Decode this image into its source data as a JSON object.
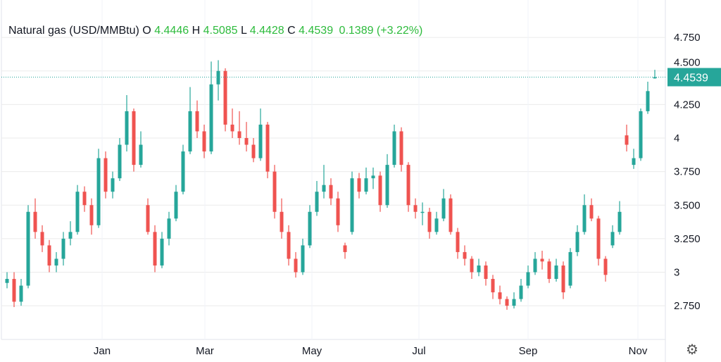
{
  "legend": {
    "symbol": "Natural gas (USD/MMBtu)",
    "o_label": "O",
    "o": "4.4446",
    "h_label": "H",
    "h": "4.5085",
    "l_label": "L",
    "l": "4.4428",
    "c_label": "C",
    "c": "4.4539",
    "change": "0.1389 (+3.22%)"
  },
  "settings_icon": "gear-icon",
  "chart_data": {
    "type": "candlestick",
    "title": "Natural gas (USD/MMBtu)",
    "ylim": [
      2.5,
      4.95
    ],
    "yticks": [
      {
        "v": 2.75,
        "label": "2.750"
      },
      {
        "v": 3,
        "label": "3"
      },
      {
        "v": 3.25,
        "label": "3.250"
      },
      {
        "v": 3.5,
        "label": "3.500"
      },
      {
        "v": 3.75,
        "label": "3.750"
      },
      {
        "v": 4,
        "label": "4"
      },
      {
        "v": 4.25,
        "label": "4.250"
      },
      {
        "v": 4.5,
        "label": "4.500"
      },
      {
        "v": 4.75,
        "label": "4.750"
      }
    ],
    "xticks": [
      {
        "label": "Jan",
        "at_candle": 13.5
      },
      {
        "label": "Mar",
        "at_candle": 28.1
      },
      {
        "label": "May",
        "at_candle": 43.3
      },
      {
        "label": "Jul",
        "at_candle": 58.5
      },
      {
        "label": "Sep",
        "at_candle": 74
      },
      {
        "label": "Nov",
        "at_candle": 89.6
      }
    ],
    "last_price": 4.4539,
    "last_price_label": "4.4539",
    "grid": true,
    "colors": {
      "up": "#26a69a",
      "down": "#ef5350",
      "grid": "#ebebeb",
      "last_price": "#26a69a"
    },
    "candles_ohlc": [
      [
        2.92,
        3.0,
        2.88,
        2.95
      ],
      [
        2.95,
        3.0,
        2.74,
        2.78
      ],
      [
        2.78,
        2.95,
        2.75,
        2.9
      ],
      [
        2.9,
        3.5,
        2.88,
        3.45
      ],
      [
        3.45,
        3.55,
        3.25,
        3.3
      ],
      [
        3.3,
        3.35,
        3.15,
        3.2
      ],
      [
        3.2,
        3.24,
        3.0,
        3.05
      ],
      [
        3.05,
        3.15,
        3.0,
        3.1
      ],
      [
        3.1,
        3.3,
        3.05,
        3.25
      ],
      [
        3.25,
        3.38,
        3.2,
        3.3
      ],
      [
        3.3,
        3.65,
        3.28,
        3.6
      ],
      [
        3.6,
        3.64,
        3.45,
        3.5
      ],
      [
        3.5,
        3.55,
        3.28,
        3.35
      ],
      [
        3.35,
        3.92,
        3.33,
        3.85
      ],
      [
        3.85,
        3.9,
        3.55,
        3.6
      ],
      [
        3.6,
        3.75,
        3.55,
        3.7
      ],
      [
        3.7,
        4.0,
        3.68,
        3.95
      ],
      [
        3.95,
        4.32,
        3.9,
        4.2
      ],
      [
        4.2,
        4.22,
        3.75,
        3.8
      ],
      [
        3.8,
        4.05,
        3.78,
        3.95
      ],
      [
        3.5,
        3.55,
        3.28,
        3.3
      ],
      [
        3.3,
        3.35,
        3.0,
        3.05
      ],
      [
        3.05,
        3.3,
        3.03,
        3.25
      ],
      [
        3.25,
        3.45,
        3.2,
        3.4
      ],
      [
        3.4,
        3.65,
        3.38,
        3.6
      ],
      [
        3.6,
        3.95,
        3.58,
        3.9
      ],
      [
        3.9,
        4.38,
        3.88,
        4.2
      ],
      [
        4.2,
        4.28,
        4.0,
        4.05
      ],
      [
        4.05,
        4.1,
        3.85,
        3.9
      ],
      [
        3.9,
        4.57,
        3.88,
        4.4
      ],
      [
        4.4,
        4.58,
        4.28,
        4.5
      ],
      [
        4.5,
        4.52,
        4.05,
        4.1
      ],
      [
        4.1,
        4.22,
        4.0,
        4.05
      ],
      [
        4.05,
        4.2,
        3.95,
        4.0
      ],
      [
        4.0,
        4.12,
        3.9,
        3.95
      ],
      [
        3.95,
        4.0,
        3.82,
        3.85
      ],
      [
        3.85,
        4.22,
        3.83,
        4.1
      ],
      [
        4.1,
        4.12,
        3.7,
        3.75
      ],
      [
        3.75,
        3.8,
        3.4,
        3.45
      ],
      [
        3.45,
        3.55,
        3.25,
        3.3
      ],
      [
        3.3,
        3.35,
        3.05,
        3.1
      ],
      [
        3.1,
        3.15,
        2.96,
        3.0
      ],
      [
        3.0,
        3.25,
        2.98,
        3.2
      ],
      [
        3.2,
        3.5,
        3.18,
        3.45
      ],
      [
        3.45,
        3.68,
        3.42,
        3.6
      ],
      [
        3.6,
        3.8,
        3.55,
        3.65
      ],
      [
        3.65,
        3.7,
        3.5,
        3.55
      ],
      [
        3.55,
        3.6,
        3.3,
        3.35
      ],
      [
        3.2,
        3.22,
        3.1,
        3.15
      ],
      [
        3.3,
        3.75,
        3.28,
        3.7
      ],
      [
        3.7,
        3.74,
        3.55,
        3.6
      ],
      [
        3.6,
        3.78,
        3.58,
        3.7
      ],
      [
        3.7,
        3.78,
        3.62,
        3.72
      ],
      [
        3.72,
        3.75,
        3.45,
        3.5
      ],
      [
        3.5,
        3.88,
        3.48,
        3.8
      ],
      [
        3.8,
        4.1,
        3.78,
        4.05
      ],
      [
        4.05,
        4.08,
        3.75,
        3.8
      ],
      [
        3.8,
        3.82,
        3.45,
        3.5
      ],
      [
        3.5,
        3.55,
        3.4,
        3.45
      ],
      [
        3.45,
        3.52,
        3.35,
        3.45
      ],
      [
        3.45,
        3.48,
        3.25,
        3.3
      ],
      [
        3.3,
        3.45,
        3.28,
        3.4
      ],
      [
        3.4,
        3.62,
        3.38,
        3.55
      ],
      [
        3.55,
        3.58,
        3.28,
        3.3
      ],
      [
        3.3,
        3.33,
        3.1,
        3.15
      ],
      [
        3.15,
        3.2,
        3.05,
        3.1
      ],
      [
        3.1,
        3.12,
        2.95,
        3.0
      ],
      [
        3.0,
        3.1,
        2.97,
        3.05
      ],
      [
        3.05,
        3.08,
        2.9,
        2.95
      ],
      [
        2.95,
        2.98,
        2.8,
        2.85
      ],
      [
        2.85,
        2.9,
        2.76,
        2.8
      ],
      [
        2.8,
        2.82,
        2.72,
        2.75
      ],
      [
        2.75,
        2.85,
        2.73,
        2.8
      ],
      [
        2.8,
        2.95,
        2.78,
        2.9
      ],
      [
        2.9,
        3.05,
        2.88,
        3.0
      ],
      [
        3.0,
        3.15,
        2.98,
        3.1
      ],
      [
        3.1,
        3.16,
        3.02,
        3.08
      ],
      [
        3.08,
        3.1,
        2.92,
        2.95
      ],
      [
        2.95,
        3.1,
        2.93,
        3.05
      ],
      [
        3.05,
        3.08,
        2.8,
        2.85
      ],
      [
        2.9,
        3.18,
        2.88,
        3.15
      ],
      [
        3.15,
        3.35,
        3.12,
        3.3
      ],
      [
        3.3,
        3.58,
        3.28,
        3.5
      ],
      [
        3.5,
        3.55,
        3.38,
        3.4
      ],
      [
        3.4,
        3.42,
        3.05,
        3.1
      ],
      [
        3.1,
        3.12,
        2.93,
        2.98
      ],
      [
        3.2,
        3.35,
        3.18,
        3.3
      ],
      [
        3.3,
        3.53,
        3.28,
        3.45
      ],
      [
        4.02,
        4.1,
        3.9,
        3.95
      ],
      [
        3.8,
        3.92,
        3.77,
        3.85
      ],
      [
        3.85,
        4.22,
        3.83,
        4.2
      ],
      [
        4.2,
        4.42,
        4.18,
        4.35
      ],
      [
        4.4446,
        4.5085,
        4.4428,
        4.4539
      ]
    ]
  }
}
